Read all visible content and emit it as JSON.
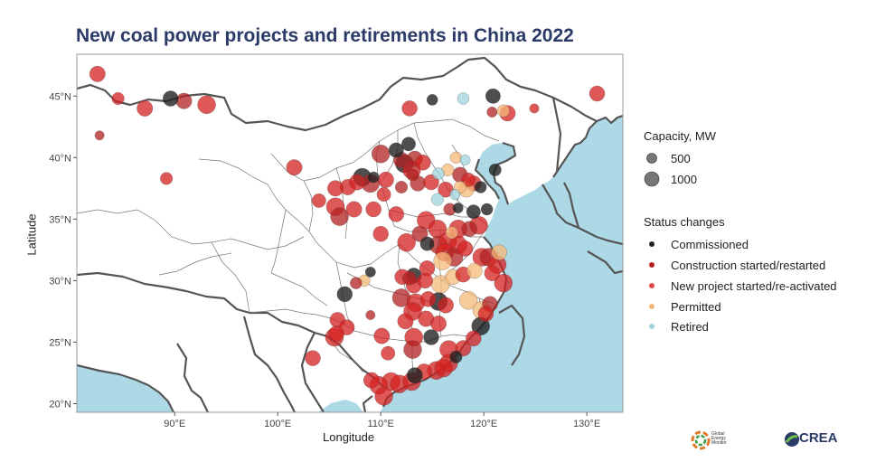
{
  "title": "New coal power projects and retirements in China 2022",
  "axes": {
    "xlabel": "Longitude",
    "ylabel": "Latitude",
    "xticks": [
      "90°E",
      "100°E",
      "110°E",
      "120°E",
      "130°E"
    ],
    "yticks": [
      "20°N",
      "25°N",
      "30°N",
      "35°N",
      "40°N",
      "45°N"
    ]
  },
  "legend": {
    "capacity_title": "Capacity, MW",
    "capacity_items": [
      "500",
      "1000"
    ],
    "status_title": "Status changes",
    "status_items": [
      {
        "label": "Commissioned",
        "color": "#222222"
      },
      {
        "label": "Construction started/restarted",
        "color": "#b22222"
      },
      {
        "label": "New project started/re-activated",
        "color": "#d42020"
      },
      {
        "label": "Permitted",
        "color": "#f5b97a"
      },
      {
        "label": "Retired",
        "color": "#9fd4dc"
      }
    ]
  },
  "logos": {
    "gem": "Global Energy Monitor",
    "crea": "CREA"
  },
  "colors": {
    "sea": "#add8e6",
    "land": "#ffffff",
    "commissioned": "#222222",
    "construction": "#b22222",
    "new_project": "#d42020",
    "permitted": "#f5b97a",
    "retired": "#9fd4dc"
  },
  "chart_data": {
    "type": "scatter",
    "title": "New coal power projects and retirements in China 2022",
    "xlabel": "Longitude",
    "ylabel": "Latitude",
    "xlim": [
      80.5,
      133.5
    ],
    "ylim": [
      19.3,
      48.4
    ],
    "size_legend": [
      500,
      1000
    ],
    "points": [
      {
        "lon": 82.5,
        "lat": 46.8,
        "status": "new",
        "mw": 700
      },
      {
        "lon": 84.5,
        "lat": 44.8,
        "status": "new",
        "mw": 350
      },
      {
        "lon": 87.1,
        "lat": 44.0,
        "status": "new",
        "mw": 700
      },
      {
        "lon": 89.6,
        "lat": 44.8,
        "status": "commissioned",
        "mw": 660
      },
      {
        "lon": 90.9,
        "lat": 44.6,
        "status": "construction",
        "mw": 700
      },
      {
        "lon": 93.1,
        "lat": 44.3,
        "status": "new",
        "mw": 1000
      },
      {
        "lon": 82.7,
        "lat": 41.8,
        "status": "construction",
        "mw": 150
      },
      {
        "lon": 89.2,
        "lat": 38.3,
        "status": "new",
        "mw": 350
      },
      {
        "lon": 101.6,
        "lat": 39.2,
        "status": "new",
        "mw": 700
      },
      {
        "lon": 112.8,
        "lat": 44.0,
        "status": "new",
        "mw": 660
      },
      {
        "lon": 115.0,
        "lat": 44.7,
        "status": "commissioned",
        "mw": 250
      },
      {
        "lon": 118.0,
        "lat": 44.8,
        "status": "retired",
        "mw": 300
      },
      {
        "lon": 120.9,
        "lat": 45.0,
        "status": "commissioned",
        "mw": 600
      },
      {
        "lon": 120.8,
        "lat": 43.7,
        "status": "construction",
        "mw": 200
      },
      {
        "lon": 121.9,
        "lat": 43.8,
        "status": "permitted",
        "mw": 350
      },
      {
        "lon": 122.3,
        "lat": 43.6,
        "status": "new",
        "mw": 700
      },
      {
        "lon": 124.9,
        "lat": 44.0,
        "status": "new",
        "mw": 150
      },
      {
        "lon": 131.0,
        "lat": 45.2,
        "status": "new",
        "mw": 660
      },
      {
        "lon": 112.7,
        "lat": 41.1,
        "status": "commissioned",
        "mw": 500
      },
      {
        "lon": 110.0,
        "lat": 40.3,
        "status": "construction",
        "mw": 1000
      },
      {
        "lon": 111.5,
        "lat": 40.6,
        "status": "commissioned",
        "mw": 600
      },
      {
        "lon": 112.0,
        "lat": 39.8,
        "status": "construction",
        "mw": 700
      },
      {
        "lon": 113.3,
        "lat": 39.9,
        "status": "construction",
        "mw": 700
      },
      {
        "lon": 112.3,
        "lat": 39.5,
        "status": "commissioned",
        "mw": 1000
      },
      {
        "lon": 114.1,
        "lat": 39.6,
        "status": "new",
        "mw": 660
      },
      {
        "lon": 113.0,
        "lat": 39.0,
        "status": "new",
        "mw": 1000
      },
      {
        "lon": 108.2,
        "lat": 38.4,
        "status": "commissioned",
        "mw": 1000
      },
      {
        "lon": 109.3,
        "lat": 38.4,
        "status": "commissioned",
        "mw": 250
      },
      {
        "lon": 106.8,
        "lat": 37.6,
        "status": "new",
        "mw": 700
      },
      {
        "lon": 107.7,
        "lat": 38.0,
        "status": "new",
        "mw": 700
      },
      {
        "lon": 105.6,
        "lat": 37.5,
        "status": "new",
        "mw": 700
      },
      {
        "lon": 109.0,
        "lat": 37.9,
        "status": "construction",
        "mw": 1000
      },
      {
        "lon": 110.5,
        "lat": 38.2,
        "status": "new",
        "mw": 700
      },
      {
        "lon": 112.0,
        "lat": 37.6,
        "status": "construction",
        "mw": 350
      },
      {
        "lon": 113.6,
        "lat": 37.9,
        "status": "construction",
        "mw": 660
      },
      {
        "lon": 113.1,
        "lat": 38.6,
        "status": "construction",
        "mw": 350
      },
      {
        "lon": 114.9,
        "lat": 38.0,
        "status": "new",
        "mw": 660
      },
      {
        "lon": 115.6,
        "lat": 38.7,
        "status": "retired",
        "mw": 300
      },
      {
        "lon": 116.5,
        "lat": 39.0,
        "status": "permitted",
        "mw": 350
      },
      {
        "lon": 117.3,
        "lat": 40.0,
        "status": "permitted",
        "mw": 300
      },
      {
        "lon": 118.2,
        "lat": 39.8,
        "status": "retired",
        "mw": 200
      },
      {
        "lon": 117.7,
        "lat": 38.6,
        "status": "construction",
        "mw": 660
      },
      {
        "lon": 118.5,
        "lat": 38.2,
        "status": "new",
        "mw": 500
      },
      {
        "lon": 119.0,
        "lat": 37.9,
        "status": "new",
        "mw": 660
      },
      {
        "lon": 119.7,
        "lat": 37.6,
        "status": "commissioned",
        "mw": 300
      },
      {
        "lon": 121.1,
        "lat": 39.0,
        "status": "commissioned",
        "mw": 350
      },
      {
        "lon": 118.3,
        "lat": 37.4,
        "status": "permitted",
        "mw": 660
      },
      {
        "lon": 117.7,
        "lat": 37.6,
        "status": "permitted",
        "mw": 350
      },
      {
        "lon": 117.2,
        "lat": 37.0,
        "status": "retired",
        "mw": 200
      },
      {
        "lon": 116.3,
        "lat": 37.4,
        "status": "new",
        "mw": 660
      },
      {
        "lon": 115.5,
        "lat": 36.6,
        "status": "retired",
        "mw": 350
      },
      {
        "lon": 116.7,
        "lat": 35.8,
        "status": "construction",
        "mw": 350
      },
      {
        "lon": 117.5,
        "lat": 35.9,
        "status": "commissioned",
        "mw": 200
      },
      {
        "lon": 119.0,
        "lat": 35.6,
        "status": "commissioned",
        "mw": 500
      },
      {
        "lon": 120.3,
        "lat": 35.8,
        "status": "commissioned",
        "mw": 300
      },
      {
        "lon": 110.3,
        "lat": 37.0,
        "status": "new",
        "mw": 500
      },
      {
        "lon": 104.0,
        "lat": 36.5,
        "status": "new",
        "mw": 500
      },
      {
        "lon": 105.6,
        "lat": 36.0,
        "status": "new",
        "mw": 1000
      },
      {
        "lon": 106.0,
        "lat": 35.2,
        "status": "construction",
        "mw": 1000
      },
      {
        "lon": 107.4,
        "lat": 35.8,
        "status": "new",
        "mw": 700
      },
      {
        "lon": 109.3,
        "lat": 35.8,
        "status": "new",
        "mw": 660
      },
      {
        "lon": 111.5,
        "lat": 35.4,
        "status": "new",
        "mw": 660
      },
      {
        "lon": 114.4,
        "lat": 34.9,
        "status": "new",
        "mw": 1000
      },
      {
        "lon": 115.5,
        "lat": 34.2,
        "status": "new",
        "mw": 1000
      },
      {
        "lon": 116.9,
        "lat": 33.9,
        "status": "permitted",
        "mw": 350
      },
      {
        "lon": 117.5,
        "lat": 34.2,
        "status": "new",
        "mw": 1000
      },
      {
        "lon": 118.6,
        "lat": 34.2,
        "status": "construction",
        "mw": 660
      },
      {
        "lon": 119.5,
        "lat": 34.5,
        "status": "new",
        "mw": 1000
      },
      {
        "lon": 110.0,
        "lat": 33.8,
        "status": "new",
        "mw": 660
      },
      {
        "lon": 112.5,
        "lat": 33.1,
        "status": "new",
        "mw": 1000
      },
      {
        "lon": 113.8,
        "lat": 33.8,
        "status": "construction",
        "mw": 700
      },
      {
        "lon": 114.5,
        "lat": 33.0,
        "status": "commissioned",
        "mw": 500
      },
      {
        "lon": 115.6,
        "lat": 32.9,
        "status": "construction",
        "mw": 1000
      },
      {
        "lon": 116.5,
        "lat": 33.2,
        "status": "new",
        "mw": 1000
      },
      {
        "lon": 117.5,
        "lat": 32.9,
        "status": "new",
        "mw": 1000
      },
      {
        "lon": 118.2,
        "lat": 32.6,
        "status": "new",
        "mw": 660
      },
      {
        "lon": 116.2,
        "lat": 32.3,
        "status": "new",
        "mw": 1000
      },
      {
        "lon": 117.1,
        "lat": 31.9,
        "status": "construction",
        "mw": 1000
      },
      {
        "lon": 119.8,
        "lat": 31.9,
        "status": "new",
        "mw": 1000
      },
      {
        "lon": 120.5,
        "lat": 31.9,
        "status": "construction",
        "mw": 1000
      },
      {
        "lon": 121.3,
        "lat": 31.3,
        "status": "new",
        "mw": 1000
      },
      {
        "lon": 121.5,
        "lat": 32.3,
        "status": "permitted",
        "mw": 660
      },
      {
        "lon": 116.0,
        "lat": 31.6,
        "status": "permitted",
        "mw": 1000
      },
      {
        "lon": 114.5,
        "lat": 31.0,
        "status": "new",
        "mw": 660
      },
      {
        "lon": 113.2,
        "lat": 30.4,
        "status": "commissioned",
        "mw": 660
      },
      {
        "lon": 112.1,
        "lat": 30.3,
        "status": "new",
        "mw": 660
      },
      {
        "lon": 112.8,
        "lat": 30.2,
        "status": "construction",
        "mw": 500
      },
      {
        "lon": 113.2,
        "lat": 29.6,
        "status": "new",
        "mw": 660
      },
      {
        "lon": 114.3,
        "lat": 30.0,
        "status": "new",
        "mw": 660
      },
      {
        "lon": 115.8,
        "lat": 29.7,
        "status": "permitted",
        "mw": 1000
      },
      {
        "lon": 117.0,
        "lat": 30.3,
        "status": "permitted",
        "mw": 660
      },
      {
        "lon": 118.0,
        "lat": 30.5,
        "status": "new",
        "mw": 660
      },
      {
        "lon": 119.1,
        "lat": 30.8,
        "status": "permitted",
        "mw": 660
      },
      {
        "lon": 121.9,
        "lat": 29.8,
        "status": "new",
        "mw": 1000
      },
      {
        "lon": 120.8,
        "lat": 30.6,
        "status": "new",
        "mw": 660
      },
      {
        "lon": 109.0,
        "lat": 30.7,
        "status": "commissioned",
        "mw": 200
      },
      {
        "lon": 108.4,
        "lat": 30.0,
        "status": "permitted",
        "mw": 300
      },
      {
        "lon": 107.6,
        "lat": 29.8,
        "status": "construction",
        "mw": 300
      },
      {
        "lon": 106.5,
        "lat": 28.9,
        "status": "commissioned",
        "mw": 660
      },
      {
        "lon": 112.0,
        "lat": 28.6,
        "status": "construction",
        "mw": 1000
      },
      {
        "lon": 113.4,
        "lat": 28.2,
        "status": "new",
        "mw": 1000
      },
      {
        "lon": 114.6,
        "lat": 28.5,
        "status": "new",
        "mw": 660
      },
      {
        "lon": 115.6,
        "lat": 28.3,
        "status": "commissioned",
        "mw": 1000
      },
      {
        "lon": 116.3,
        "lat": 28.0,
        "status": "new",
        "mw": 700
      },
      {
        "lon": 118.5,
        "lat": 28.4,
        "status": "permitted",
        "mw": 1000
      },
      {
        "lon": 120.6,
        "lat": 28.1,
        "status": "construction",
        "mw": 660
      },
      {
        "lon": 119.8,
        "lat": 27.6,
        "status": "permitted",
        "mw": 1000
      },
      {
        "lon": 120.2,
        "lat": 27.3,
        "status": "new",
        "mw": 660
      },
      {
        "lon": 113.1,
        "lat": 27.5,
        "status": "new",
        "mw": 1000
      },
      {
        "lon": 112.4,
        "lat": 26.7,
        "status": "new",
        "mw": 700
      },
      {
        "lon": 114.4,
        "lat": 26.9,
        "status": "new",
        "mw": 700
      },
      {
        "lon": 115.6,
        "lat": 26.5,
        "status": "new",
        "mw": 700
      },
      {
        "lon": 109.0,
        "lat": 27.2,
        "status": "construction",
        "mw": 150
      },
      {
        "lon": 105.8,
        "lat": 26.8,
        "status": "new",
        "mw": 660
      },
      {
        "lon": 106.7,
        "lat": 26.2,
        "status": "new",
        "mw": 660
      },
      {
        "lon": 105.7,
        "lat": 25.7,
        "status": "new",
        "mw": 660
      },
      {
        "lon": 105.5,
        "lat": 25.4,
        "status": "new",
        "mw": 1000
      },
      {
        "lon": 110.1,
        "lat": 25.5,
        "status": "new",
        "mw": 700
      },
      {
        "lon": 113.2,
        "lat": 25.4,
        "status": "new",
        "mw": 1000
      },
      {
        "lon": 114.9,
        "lat": 25.4,
        "status": "commissioned",
        "mw": 660
      },
      {
        "lon": 119.7,
        "lat": 26.3,
        "status": "commissioned",
        "mw": 1000
      },
      {
        "lon": 119.0,
        "lat": 25.3,
        "status": "new",
        "mw": 660
      },
      {
        "lon": 116.6,
        "lat": 24.4,
        "status": "new",
        "mw": 1000
      },
      {
        "lon": 118.0,
        "lat": 24.5,
        "status": "new",
        "mw": 700
      },
      {
        "lon": 113.1,
        "lat": 24.4,
        "status": "construction",
        "mw": 1000
      },
      {
        "lon": 110.7,
        "lat": 24.1,
        "status": "new",
        "mw": 500
      },
      {
        "lon": 103.4,
        "lat": 23.7,
        "status": "new",
        "mw": 660
      },
      {
        "lon": 117.3,
        "lat": 23.8,
        "status": "commissioned",
        "mw": 350
      },
      {
        "lon": 116.6,
        "lat": 23.3,
        "status": "new",
        "mw": 1000
      },
      {
        "lon": 115.4,
        "lat": 22.7,
        "status": "new",
        "mw": 1000
      },
      {
        "lon": 116.1,
        "lat": 22.9,
        "status": "new",
        "mw": 1000
      },
      {
        "lon": 114.2,
        "lat": 22.6,
        "status": "new",
        "mw": 700
      },
      {
        "lon": 113.3,
        "lat": 22.3,
        "status": "commissioned",
        "mw": 700
      },
      {
        "lon": 111.0,
        "lat": 21.8,
        "status": "new",
        "mw": 1000
      },
      {
        "lon": 111.8,
        "lat": 21.6,
        "status": "new",
        "mw": 1000
      },
      {
        "lon": 113.0,
        "lat": 21.8,
        "status": "new",
        "mw": 1000
      },
      {
        "lon": 109.8,
        "lat": 21.5,
        "status": "new",
        "mw": 1000
      },
      {
        "lon": 110.3,
        "lat": 20.6,
        "status": "new",
        "mw": 1000
      },
      {
        "lon": 109.1,
        "lat": 21.9,
        "status": "new",
        "mw": 700
      }
    ]
  }
}
